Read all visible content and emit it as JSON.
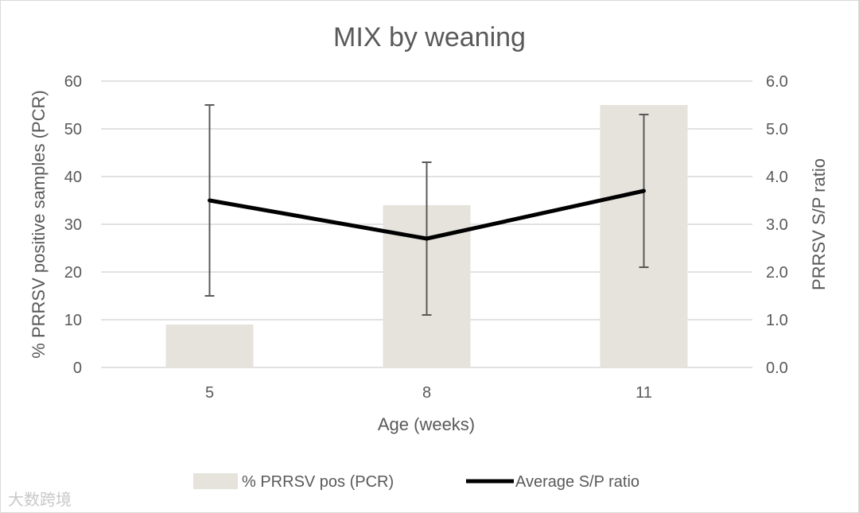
{
  "chart_data": {
    "type": "bar",
    "title": "MIX by weaning",
    "categories": [
      "5",
      "8",
      "11"
    ],
    "xlabel": "Age (weeks)",
    "ylabel": "% PRRSV positive samples  (PCR)",
    "y2label": "PRRSV S/P ratio",
    "ylim": [
      0,
      60
    ],
    "y2lim": [
      0,
      6
    ],
    "yticks": [
      "0",
      "10",
      "20",
      "30",
      "40",
      "50",
      "60"
    ],
    "y2ticks": [
      "0.0",
      "1.0",
      "2.0",
      "3.0",
      "4.0",
      "5.0",
      "6.0"
    ],
    "grid": true,
    "legend_position": "bottom",
    "series": [
      {
        "name": "% PRRSV pos (PCR)",
        "kind": "bar",
        "axis": "left",
        "color": "#e5e3dc",
        "values": [
          9,
          34,
          55
        ]
      },
      {
        "name": "Average S/P ratio",
        "kind": "line",
        "axis": "right",
        "color": "#000000",
        "values": [
          3.5,
          2.7,
          3.7
        ],
        "error_low": [
          1.5,
          1.1,
          2.1
        ],
        "error_high": [
          5.5,
          4.3,
          5.3
        ]
      }
    ]
  },
  "watermark": "大数跨境"
}
